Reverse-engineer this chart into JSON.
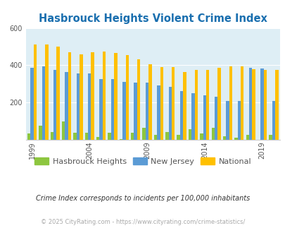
{
  "title": "Hasbrouck Heights Violent Crime Index",
  "title_color": "#1a6faf",
  "years": [
    1999,
    2000,
    2001,
    2002,
    2003,
    2004,
    2005,
    2006,
    2007,
    2008,
    2009,
    2010,
    2011,
    2012,
    2013,
    2014,
    2015,
    2016,
    2017,
    2018,
    2019,
    2020
  ],
  "hasbrouck": [
    35,
    75,
    40,
    100,
    38,
    38,
    15,
    38,
    5,
    38,
    65,
    25,
    40,
    27,
    55,
    35,
    65,
    20,
    10,
    25,
    0,
    25
  ],
  "nj": [
    385,
    395,
    375,
    365,
    355,
    355,
    325,
    325,
    310,
    305,
    305,
    290,
    285,
    260,
    250,
    240,
    230,
    210,
    210,
    385,
    383,
    210
  ],
  "national": [
    510,
    510,
    500,
    470,
    460,
    470,
    475,
    465,
    455,
    430,
    405,
    390,
    390,
    365,
    375,
    375,
    385,
    395,
    395,
    380,
    375,
    375
  ],
  "color_hasbrouck": "#8dc63f",
  "color_nj": "#5b9bd5",
  "color_national": "#ffc000",
  "bg_color": "#deeef5",
  "ylim": [
    0,
    600
  ],
  "yticks": [
    200,
    400,
    600
  ],
  "xlabel_years": [
    1999,
    2004,
    2009,
    2014,
    2019
  ],
  "legend_labels": [
    "Hasbrouck Heights",
    "New Jersey",
    "National"
  ],
  "footnote1": "Crime Index corresponds to incidents per 100,000 inhabitants",
  "footnote2": "© 2025 CityRating.com - https://www.cityrating.com/crime-statistics/",
  "footnote1_color": "#333333",
  "footnote2_color": "#aaaaaa",
  "title_fontsize": 10.5,
  "tick_fontsize": 7,
  "legend_fontsize": 8
}
